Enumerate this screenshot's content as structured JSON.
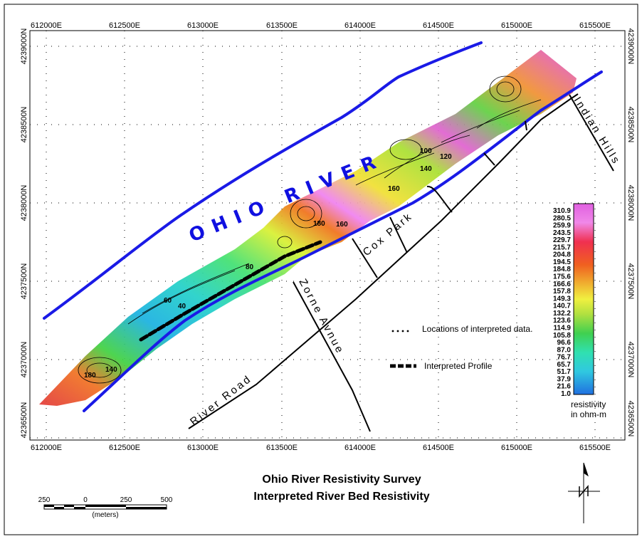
{
  "map": {
    "x_ticks": [
      "612000E",
      "612500E",
      "613000E",
      "613500E",
      "614000E",
      "614500E",
      "615000E",
      "615500E"
    ],
    "y_ticks": [
      "4239000N",
      "4238500N",
      "4238000N",
      "4237500N",
      "4237000N",
      "4236500N"
    ],
    "labels": {
      "river": "OHIO RIVER",
      "indian_hills": "Indian Hills",
      "cox_park": "Cox Park",
      "zorne": "Zorne Avnue",
      "river_road": "River Road"
    },
    "contour_labels": [
      "100",
      "120",
      "140",
      "160",
      "180",
      "160",
      "80",
      "60",
      "40",
      "180",
      "140"
    ]
  },
  "legend": {
    "locations": "Locations of interpreted data.",
    "profile": "Interpreted Profile",
    "colorbar_values": [
      "310.9",
      "280.5",
      "259.9",
      "243.5",
      "229.7",
      "215.7",
      "204.8",
      "194.5",
      "184.8",
      "175.6",
      "166.6",
      "157.8",
      "149.3",
      "140.7",
      "132.2",
      "123.6",
      "114.9",
      "105.8",
      "96.6",
      "87.0",
      "76.7",
      "65.7",
      "51.7",
      "37.9",
      "21.6",
      "1.0"
    ],
    "unit_line1": "resistivity",
    "unit_line2": "in ohm-m"
  },
  "title": {
    "line1": "Ohio River Resistivity Survey",
    "line2": "Interpreted River Bed Resistivity"
  },
  "scale": {
    "labels": [
      "250",
      "0",
      "250",
      "500"
    ],
    "unit": "(meters)"
  },
  "colors": {
    "river_line": "#1a1ae6",
    "road": "#000000"
  }
}
